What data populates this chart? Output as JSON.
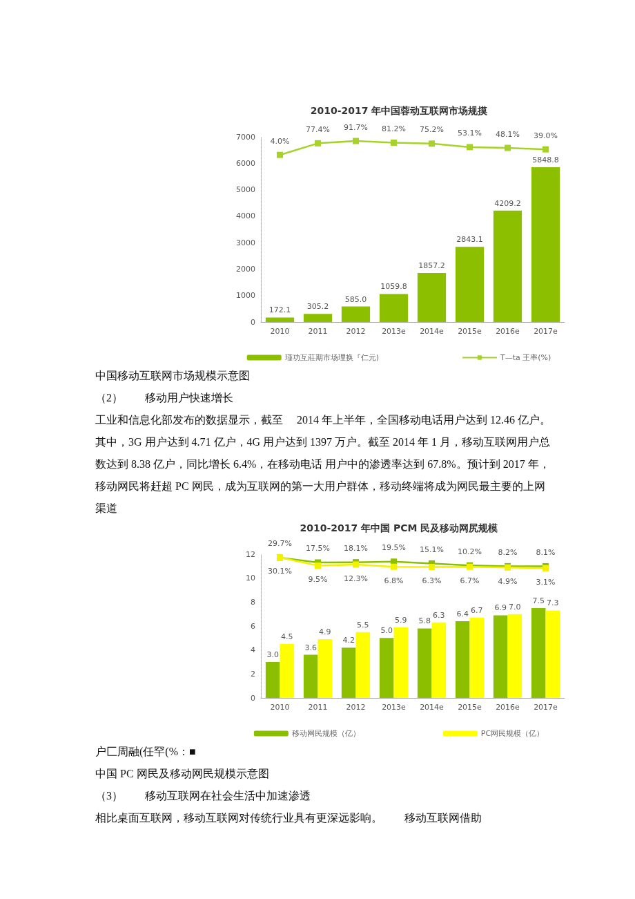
{
  "chart_data": [
    {
      "type": "bar",
      "title": "2010-2017 年中国蓉动互联网市场规摸",
      "categories": [
        "2010",
        "2011",
        "2012",
        "2013e",
        "2014e",
        "2015e",
        "2016e",
        "2017e"
      ],
      "ylim": [
        0,
        7000
      ],
      "yticks": [
        0,
        1000,
        2000,
        3000,
        4000,
        5000,
        6000,
        7000
      ],
      "grid": false,
      "legend": "bottom",
      "marker": "square",
      "series": [
        {
          "name": "瑾功互莊期市场理换『仁元)",
          "color": "#8cbf00",
          "values": [
            172.1,
            305.2,
            585.0,
            1059.8,
            1857.2,
            2843.1,
            4209.2,
            5848.8
          ],
          "value_labels": [
            "172.1",
            "305.2",
            "585.0",
            "1059.8",
            "1857.2",
            "2843.1",
            "4209.2",
            "5848.8"
          ]
        },
        {
          "name": "T—ta 王率(%)",
          "type": "line",
          "axis": "y2",
          "color": "#a6d22a",
          "values": [
            4.0,
            77.4,
            91.7,
            81.2,
            75.2,
            53.1,
            48.1,
            39.0
          ],
          "value_labels": [
            "4.0%",
            "77.4%",
            "91.7%",
            "81.2%",
            "75.2%",
            "53.1%",
            "48.1%",
            "39.0%"
          ]
        }
      ],
      "annotations": [
        "中国移动互联网市场规模示意图",
        "（2）　　移动用户快速增长",
        "工业和信息化部发布的数据显示，截至　 2014 年上半年，全国移动电话用户达到 12.46 亿户。其中，3G 用户达到 4.71 亿户，4G 用户达到 1397 万户。截至 2014 年 1 月，移动互联网用户总数达到 8.38 亿户，同比增长 6.4%，在移动电话 用户中的渗透率达到 67.8%。预计到 2017 年，移动网民将赶超 PC 网民，成为互联网的第一大用户群体，移动终端将成为网民最主要的上网渠道"
      ]
    },
    {
      "type": "bar",
      "title": "2010-2017 年中国 PCM 民及移动网尻规模",
      "categories": [
        "2010",
        "2011",
        "2012",
        "2013e",
        "2014e",
        "2015e",
        "2016e",
        "2017e"
      ],
      "ylim": [
        0,
        12
      ],
      "yticks": [
        0,
        2,
        4,
        6,
        8,
        10,
        12
      ],
      "grid": false,
      "legend": "bottom",
      "marker": "square",
      "series": [
        {
          "name": "移动网民规模（亿）",
          "color": "#8cbf00",
          "values": [
            3.0,
            3.6,
            4.2,
            5.0,
            5.8,
            6.4,
            6.9,
            7.5
          ],
          "value_labels": [
            "3.0",
            "3.6",
            "4.2",
            "5.0",
            "5.8",
            "6.4",
            "6.9",
            "7.5"
          ]
        },
        {
          "name": "PC网民规模（亿）",
          "color": "#ffff00",
          "values": [
            4.5,
            4.9,
            5.5,
            5.9,
            6.3,
            6.7,
            7.0,
            7.3
          ],
          "value_labels": [
            "4.5",
            "4.9",
            "5.5",
            "5.9",
            "6.3",
            "6.7",
            "7.0",
            "7.3"
          ]
        },
        {
          "type": "line",
          "axis": "y2",
          "color": "#8cbf00",
          "values": [
            29.7,
            17.5,
            18.1,
            19.5,
            15.1,
            10.2,
            8.2,
            8.1
          ],
          "value_labels": [
            "29.7%",
            "17.5%",
            "18.1%",
            "19.5%",
            "15.1%",
            "10.2%",
            "8.2%",
            "8.1%"
          ]
        },
        {
          "type": "line",
          "axis": "y2",
          "color": "#f2f200",
          "values": [
            30.1,
            9.5,
            12.3,
            6.8,
            6.3,
            6.7,
            4.9,
            3.1
          ],
          "value_labels": [
            "30.1%",
            "9.5%",
            "12.3%",
            "6.8%",
            "6.3%",
            "6.7%",
            "4.9%",
            "3.1%"
          ]
        }
      ],
      "annotations": [
        "户匚周融(任罕(%：■",
        "中国 PC 网民及移动网民规模示意图",
        "（3）　　移动互联网在社会生活中加速渗透",
        "相比桌面互联网，移动互联网对传统行业具有更深远影响。　　移动互联网借助"
      ]
    }
  ]
}
